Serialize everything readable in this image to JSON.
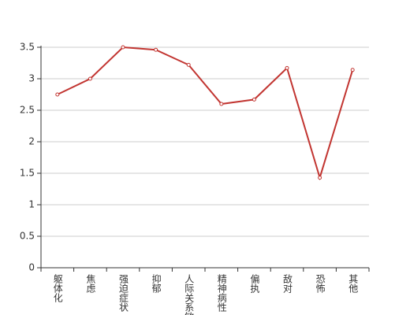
{
  "chart_data": {
    "type": "line",
    "categories": [
      "躯体化",
      "焦虑",
      "强迫症状",
      "抑郁",
      "人际关系敏感",
      "精神病性",
      "偏执",
      "敌对",
      "恐怖",
      "其他"
    ],
    "values": [
      2.75,
      3.0,
      3.5,
      3.46,
      3.22,
      2.6,
      2.67,
      3.17,
      1.43,
      3.14
    ],
    "color": "#c23531",
    "ylim": [
      0,
      3.5
    ],
    "yticks": [
      0,
      0.5,
      1,
      1.5,
      2,
      2.5,
      3,
      3.5
    ],
    "grid": true
  }
}
